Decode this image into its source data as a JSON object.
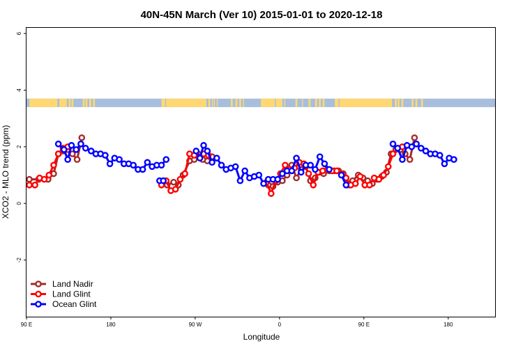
{
  "chart_data": {
    "type": "line",
    "title": "40N-45N March (Ver 10)   2015-01-01 to 2020-12-18",
    "xlabel": "Longitude",
    "ylabel": "XCO2 - MLO trend (ppm)",
    "xlim": [
      -90,
      410
    ],
    "ylim": [
      -4,
      6.2
    ],
    "x_ticks": [
      {
        "value": -90,
        "label": "90 E"
      },
      {
        "value": 0,
        "label": "180"
      },
      {
        "value": 90,
        "label": "90 W"
      },
      {
        "value": 180,
        "label": "0"
      },
      {
        "value": 270,
        "label": "90 E"
      },
      {
        "value": 360,
        "label": "180"
      }
    ],
    "y_ticks": [
      {
        "value": -2,
        "label": "-2"
      },
      {
        "value": 0,
        "label": "0"
      },
      {
        "value": 2,
        "label": "2"
      },
      {
        "value": 4,
        "label": "4"
      },
      {
        "value": 6,
        "label": "6"
      }
    ],
    "grid": false,
    "legend_position": "bottom-left",
    "land_ocean_strip": {
      "y_range": [
        3.4,
        3.7
      ],
      "land_color": "#FFD873",
      "ocean_color": "#A7BFDD",
      "land_segments": [
        [
          -87,
          -57
        ],
        [
          -55,
          -47
        ],
        [
          -45,
          -43
        ],
        [
          -42,
          -40
        ],
        [
          -30,
          -28
        ],
        [
          -27,
          -25
        ],
        [
          -23,
          -21
        ],
        [
          -19,
          -17
        ],
        [
          54,
          58
        ],
        [
          59,
          102
        ],
        [
          104,
          106
        ],
        [
          108,
          109
        ],
        [
          110,
          111
        ],
        [
          113,
          114
        ],
        [
          128,
          130
        ],
        [
          133,
          135
        ],
        [
          137,
          139
        ],
        [
          141,
          142
        ],
        [
          160,
          175
        ],
        [
          176,
          183
        ],
        [
          185,
          186
        ],
        [
          197,
          199
        ],
        [
          204,
          205
        ],
        [
          211,
          213
        ],
        [
          218,
          220
        ],
        [
          222,
          224
        ],
        [
          226,
          228
        ],
        [
          239,
          243
        ],
        [
          244,
          300
        ],
        [
          303,
          305
        ],
        [
          306,
          308
        ],
        [
          310,
          312
        ],
        [
          321,
          323
        ],
        [
          325,
          327
        ],
        [
          331,
          333
        ]
      ]
    },
    "series": [
      {
        "name": "Land Nadir",
        "color": "#A52A2A",
        "points": [
          [
            -87,
            0.85
          ],
          [
            -77,
            0.85
          ],
          [
            -67,
            0.85
          ],
          [
            -61,
            1.05
          ],
          [
            -56,
            1.75
          ],
          [
            -51,
            1.85
          ],
          [
            -46,
            1.9
          ],
          [
            -41,
            1.75
          ],
          [
            -36,
            1.55
          ],
          [
            -31,
            2.32
          ],
          [
            54,
            0.75
          ],
          [
            60,
            0.65
          ],
          [
            67,
            0.75
          ],
          [
            72,
            0.65
          ],
          [
            77,
            1.0
          ],
          [
            84,
            1.5
          ],
          [
            89,
            1.55
          ],
          [
            93,
            1.75
          ],
          [
            98,
            1.55
          ],
          [
            103,
            1.5
          ],
          [
            108,
            1.65
          ],
          [
            168,
            0.65
          ],
          [
            173,
            0.6
          ],
          [
            178,
            0.75
          ],
          [
            183,
            0.8
          ],
          [
            188,
            1.0
          ],
          [
            193,
            1.35
          ],
          [
            198,
            0.9
          ],
          [
            203,
            1.2
          ],
          [
            208,
            1.3
          ],
          [
            213,
            0.8
          ],
          [
            218,
            0.9
          ],
          [
            223,
            1.1
          ],
          [
            227,
            1.05
          ],
          [
            233,
            1.15
          ],
          [
            238,
            1.15
          ],
          [
            243,
            1.15
          ],
          [
            248,
            1.05
          ],
          [
            253,
            0.65
          ],
          [
            258,
            0.8
          ],
          [
            264,
            1.0
          ],
          [
            269,
            0.9
          ],
          [
            274,
            0.8
          ],
          [
            279,
            0.7
          ],
          [
            284,
            0.85
          ],
          [
            289,
            0.95
          ],
          [
            294,
            1.1
          ],
          [
            299,
            1.75
          ],
          [
            304,
            1.9
          ],
          [
            309,
            1.9
          ],
          [
            314,
            1.75
          ],
          [
            319,
            1.55
          ],
          [
            324,
            2.32
          ]
        ]
      },
      {
        "name": "Land Glint",
        "color": "#FF0000",
        "points": [
          [
            -87,
            0.65
          ],
          [
            -81,
            0.65
          ],
          [
            -76,
            0.9
          ],
          [
            -71,
            0.85
          ],
          [
            -66,
            1.0
          ],
          [
            -61,
            1.35
          ],
          [
            -56,
            1.75
          ],
          [
            -51,
            1.95
          ],
          [
            -46,
            2.0
          ],
          [
            54,
            0.65
          ],
          [
            59,
            0.8
          ],
          [
            64,
            0.45
          ],
          [
            69,
            0.5
          ],
          [
            74,
            0.85
          ],
          [
            79,
            1.05
          ],
          [
            84,
            1.75
          ],
          [
            89,
            1.7
          ],
          [
            94,
            1.65
          ],
          [
            99,
            1.75
          ],
          [
            104,
            1.7
          ],
          [
            166,
            0.75
          ],
          [
            171,
            0.35
          ],
          [
            176,
            0.8
          ],
          [
            181,
            1.05
          ],
          [
            186,
            1.35
          ],
          [
            191,
            1.2
          ],
          [
            196,
            1.25
          ],
          [
            201,
            1.45
          ],
          [
            206,
            1.4
          ],
          [
            211,
            1.05
          ],
          [
            216,
            0.65
          ],
          [
            221,
            1.1
          ],
          [
            226,
            1.15
          ],
          [
            231,
            1.2
          ],
          [
            236,
            1.15
          ],
          [
            241,
            1.15
          ],
          [
            246,
            1.05
          ],
          [
            251,
            0.9
          ],
          [
            256,
            0.65
          ],
          [
            261,
            0.7
          ],
          [
            266,
            0.95
          ],
          [
            271,
            0.65
          ],
          [
            276,
            0.65
          ],
          [
            281,
            0.9
          ],
          [
            286,
            0.85
          ],
          [
            291,
            1.0
          ],
          [
            296,
            1.3
          ],
          [
            301,
            1.75
          ],
          [
            306,
            1.95
          ],
          [
            311,
            2.0
          ]
        ]
      },
      {
        "name": "Ocean Glint",
        "color": "#0000FF",
        "points": [
          [
            -56,
            2.1
          ],
          [
            -50,
            1.9
          ],
          [
            -46,
            1.55
          ],
          [
            -42,
            2.05
          ],
          [
            -37,
            1.9
          ],
          [
            -32,
            2.1
          ],
          [
            -27,
            1.95
          ],
          [
            -21,
            1.85
          ],
          [
            -16,
            1.75
          ],
          [
            -11,
            1.75
          ],
          [
            -6,
            1.7
          ],
          [
            -1,
            1.4
          ],
          [
            4,
            1.6
          ],
          [
            9,
            1.55
          ],
          [
            14,
            1.4
          ],
          [
            19,
            1.4
          ],
          [
            24,
            1.35
          ],
          [
            29,
            1.2
          ],
          [
            34,
            1.2
          ],
          [
            39,
            1.45
          ],
          [
            44,
            1.3
          ],
          [
            49,
            1.35
          ],
          [
            54,
            1.35
          ],
          [
            59,
            1.55
          ],
          [
            52,
            0.8
          ],
          [
            56,
            0.8
          ],
          [
            91,
            1.85
          ],
          [
            95,
            1.6
          ],
          [
            99,
            2.05
          ],
          [
            103,
            1.85
          ],
          [
            108,
            1.45
          ],
          [
            113,
            1.6
          ],
          [
            118,
            1.35
          ],
          [
            123,
            1.2
          ],
          [
            128,
            1.25
          ],
          [
            133,
            1.3
          ],
          [
            138,
            0.8
          ],
          [
            143,
            1.15
          ],
          [
            148,
            0.9
          ],
          [
            153,
            0.95
          ],
          [
            158,
            1.0
          ],
          [
            163,
            0.7
          ],
          [
            168,
            0.85
          ],
          [
            173,
            0.85
          ],
          [
            178,
            0.85
          ],
          [
            183,
            1.05
          ],
          [
            188,
            1.15
          ],
          [
            193,
            1.15
          ],
          [
            198,
            1.6
          ],
          [
            203,
            1.1
          ],
          [
            208,
            1.35
          ],
          [
            213,
            1.35
          ],
          [
            218,
            1.2
          ],
          [
            223,
            1.65
          ],
          [
            228,
            1.4
          ],
          [
            233,
            1.2
          ],
          [
            246,
            1.0
          ],
          [
            251,
            0.65
          ],
          [
            301,
            2.1
          ],
          [
            306,
            1.95
          ],
          [
            311,
            1.55
          ],
          [
            316,
            2.05
          ],
          [
            321,
            2.0
          ],
          [
            326,
            2.1
          ],
          [
            331,
            1.95
          ],
          [
            336,
            1.85
          ],
          [
            341,
            1.75
          ],
          [
            346,
            1.75
          ],
          [
            351,
            1.7
          ],
          [
            356,
            1.4
          ],
          [
            361,
            1.6
          ],
          [
            366,
            1.55
          ]
        ]
      }
    ]
  }
}
